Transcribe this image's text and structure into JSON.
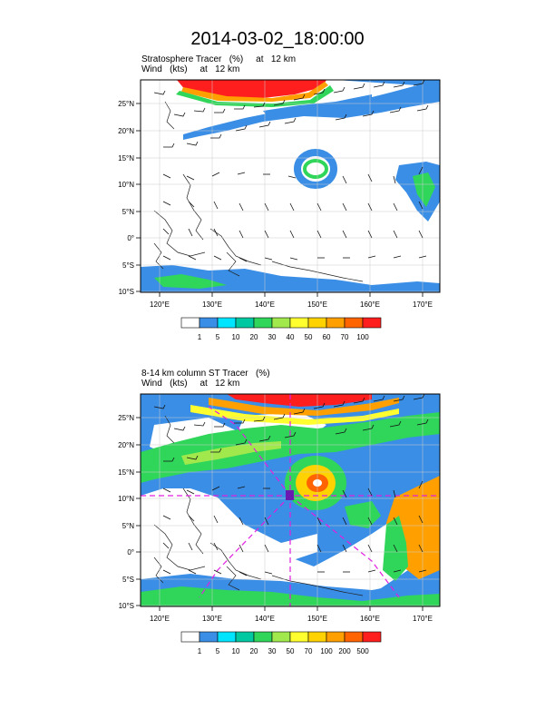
{
  "title": "2014-03-02_18:00:00",
  "panels": [
    {
      "subtitle_line1": "Stratosphere Tracer   (%)     at   12 km",
      "subtitle_line2": "Wind   (kts)     at   12 km",
      "lat_labels": [
        "25°N",
        "20°N",
        "15°N",
        "10°N",
        "5°N",
        "0°",
        "5°S",
        "10°S"
      ],
      "lon_labels": [
        "120°E",
        "130°E",
        "140°E",
        "150°E",
        "160°E",
        "170°E"
      ],
      "colorbar_labels": [
        "1",
        "5",
        "10",
        "20",
        "30",
        "40",
        "50",
        "60",
        "70",
        "100"
      ],
      "colorbar_colors": [
        "#ffffff",
        "#3a8ee6",
        "#00e5ff",
        "#00c8a0",
        "#2fd65a",
        "#a0e84c",
        "#ffff30",
        "#ffd200",
        "#ffa000",
        "#ff6400",
        "#ff1e1e"
      ]
    },
    {
      "subtitle_line1": "8-14 km column ST Tracer   (%)",
      "subtitle_line2": "Wind   (kts)     at   12 km",
      "lat_labels": [
        "25°N",
        "20°N",
        "15°N",
        "10°N",
        "5°N",
        "0°",
        "5°S",
        "10°S"
      ],
      "lon_labels": [
        "120°E",
        "130°E",
        "140°E",
        "150°E",
        "160°E",
        "170°E"
      ],
      "colorbar_labels": [
        "1",
        "5",
        "10",
        "20",
        "30",
        "50",
        "70",
        "100",
        "200",
        "500"
      ],
      "colorbar_colors": [
        "#ffffff",
        "#3a8ee6",
        "#00e5ff",
        "#00c8a0",
        "#2fd65a",
        "#a0e84c",
        "#ffff30",
        "#ffd200",
        "#ffa000",
        "#ff6400",
        "#ff1e1e"
      ]
    }
  ]
}
